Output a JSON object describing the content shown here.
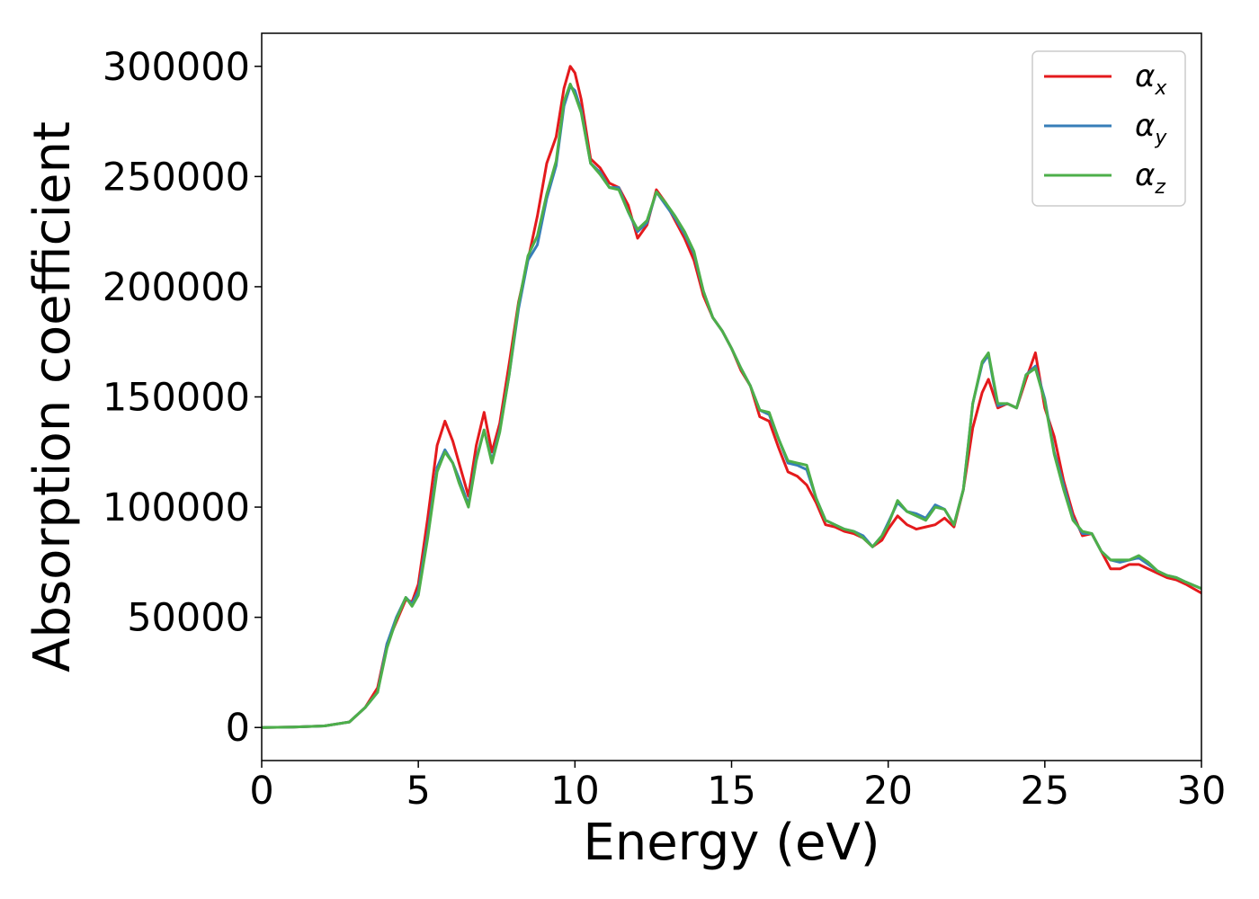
{
  "chart_data": {
    "type": "line",
    "xlabel": "Energy (eV)",
    "ylabel": "Absorption coefficient",
    "xlim": [
      0,
      30
    ],
    "ylim": [
      -15000,
      315000
    ],
    "xticks": [
      0,
      5,
      10,
      15,
      20,
      25,
      30
    ],
    "xtick_labels": [
      "0",
      "5",
      "10",
      "15",
      "20",
      "25",
      "30"
    ],
    "yticks": [
      0,
      50000,
      100000,
      150000,
      200000,
      250000,
      300000
    ],
    "ytick_labels": [
      "0",
      "50000",
      "100000",
      "150000",
      "200000",
      "250000",
      "300000"
    ],
    "grid": false,
    "legend_position": "top-right",
    "x": [
      0,
      1,
      2,
      2.8,
      3.3,
      3.7,
      4.0,
      4.3,
      4.6,
      4.8,
      5.0,
      5.3,
      5.6,
      5.85,
      6.1,
      6.3,
      6.6,
      6.85,
      7.1,
      7.35,
      7.6,
      7.9,
      8.2,
      8.5,
      8.8,
      9.1,
      9.4,
      9.65,
      9.85,
      10.0,
      10.2,
      10.5,
      10.8,
      11.1,
      11.4,
      11.7,
      12.0,
      12.3,
      12.6,
      12.9,
      13.2,
      13.5,
      13.8,
      14.1,
      14.4,
      14.7,
      15.0,
      15.3,
      15.6,
      15.9,
      16.2,
      16.5,
      16.8,
      17.1,
      17.4,
      17.7,
      18.0,
      18.3,
      18.6,
      18.9,
      19.2,
      19.5,
      19.8,
      20.0,
      20.3,
      20.6,
      20.9,
      21.2,
      21.5,
      21.8,
      22.1,
      22.4,
      22.7,
      23.0,
      23.2,
      23.5,
      23.8,
      24.1,
      24.4,
      24.7,
      25.0,
      25.3,
      25.6,
      25.9,
      26.2,
      26.5,
      26.8,
      27.1,
      27.4,
      27.7,
      28.0,
      28.3,
      28.6,
      28.9,
      29.2,
      29.5,
      30
    ],
    "series": [
      {
        "name": "α_x",
        "color": "#e41a1c",
        "values": [
          0,
          200,
          700,
          2500,
          9000,
          18000,
          38000,
          48000,
          58000,
          57000,
          65000,
          95000,
          128000,
          139000,
          130000,
          120000,
          105000,
          128000,
          143000,
          125000,
          138000,
          165000,
          193000,
          212000,
          232000,
          256000,
          268000,
          290000,
          300000,
          297000,
          285000,
          258000,
          254000,
          247000,
          245000,
          237000,
          222000,
          228000,
          244000,
          238000,
          230000,
          222000,
          212000,
          196000,
          186000,
          180000,
          172000,
          162000,
          155000,
          141000,
          139000,
          127000,
          116000,
          114000,
          110000,
          102000,
          92000,
          91000,
          89000,
          88000,
          86000,
          82000,
          85000,
          90000,
          96000,
          92000,
          90000,
          91000,
          92000,
          95000,
          91000,
          108000,
          136000,
          152000,
          158000,
          145000,
          147000,
          145000,
          158000,
          170000,
          145000,
          132000,
          112000,
          97000,
          87000,
          88000,
          80000,
          72000,
          72000,
          74000,
          74000,
          72000,
          70000,
          68000,
          67000,
          65000,
          61000
        ]
      },
      {
        "name": "α_y",
        "color": "#377eb8",
        "values": [
          0,
          200,
          700,
          2500,
          9000,
          16000,
          38000,
          50000,
          59000,
          56000,
          62000,
          88000,
          118000,
          126000,
          120000,
          113000,
          101000,
          122000,
          135000,
          121000,
          135000,
          160000,
          190000,
          212000,
          219000,
          240000,
          255000,
          282000,
          291000,
          289000,
          280000,
          256000,
          252000,
          245000,
          245000,
          234000,
          225000,
          229000,
          243000,
          237000,
          231000,
          224000,
          215000,
          198000,
          186000,
          180000,
          172000,
          163000,
          155000,
          144000,
          142000,
          131000,
          120000,
          119000,
          117000,
          104000,
          94000,
          92000,
          90000,
          89000,
          87000,
          82000,
          87000,
          93000,
          102000,
          98000,
          97000,
          95000,
          101000,
          99000,
          92000,
          108000,
          147000,
          165000,
          169000,
          146000,
          147000,
          145000,
          160000,
          164000,
          149000,
          125000,
          110000,
          95000,
          88000,
          88000,
          80000,
          76000,
          75000,
          76000,
          77000,
          74000,
          71000,
          69000,
          68000,
          66000,
          63000
        ]
      },
      {
        "name": "α_z",
        "color": "#4daf4a",
        "values": [
          0,
          200,
          700,
          2500,
          9000,
          16000,
          36000,
          49000,
          59000,
          55000,
          60000,
          86000,
          116000,
          125000,
          120000,
          111000,
          100000,
          121000,
          135000,
          120000,
          134000,
          160000,
          192000,
          214000,
          223000,
          242000,
          257000,
          284000,
          292000,
          287000,
          279000,
          256000,
          251000,
          245000,
          244000,
          234000,
          226000,
          230000,
          243000,
          238000,
          232000,
          225000,
          216000,
          198000,
          186000,
          180000,
          172000,
          163000,
          155000,
          144000,
          143000,
          131000,
          121000,
          120000,
          119000,
          104000,
          94000,
          92000,
          90000,
          89000,
          86000,
          82000,
          87000,
          92000,
          103000,
          98000,
          96000,
          94000,
          100000,
          99000,
          92000,
          108000,
          147000,
          166000,
          170000,
          147000,
          147000,
          145000,
          160000,
          163000,
          148000,
          124000,
          108000,
          94000,
          89000,
          88000,
          80000,
          76000,
          76000,
          76000,
          78000,
          75000,
          71000,
          69000,
          68000,
          66000,
          63000
        ]
      }
    ],
    "legend": [
      {
        "symbol": "α",
        "sub": "x"
      },
      {
        "symbol": "α",
        "sub": "y"
      },
      {
        "symbol": "α",
        "sub": "z"
      }
    ]
  }
}
